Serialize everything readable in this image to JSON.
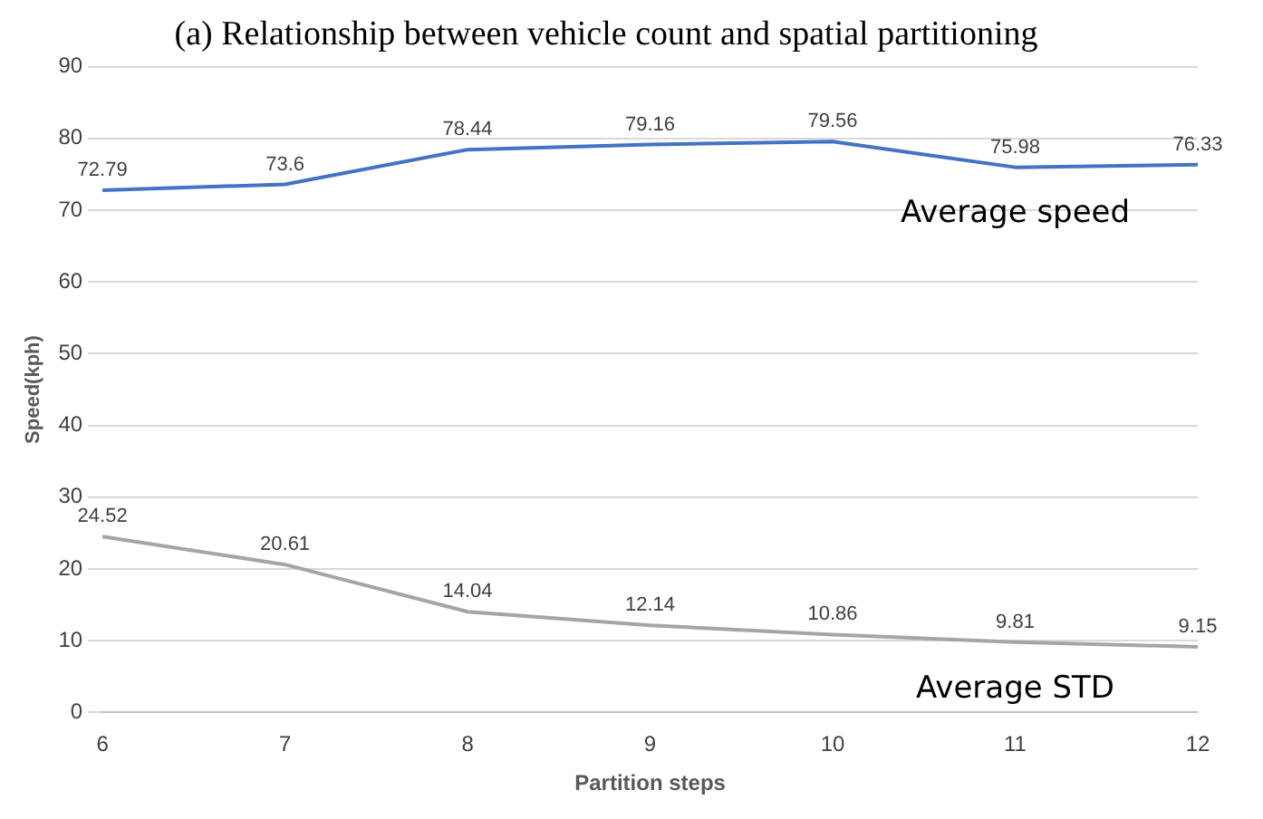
{
  "chart_data": {
    "type": "line",
    "title": "(a) Relationship between vehicle count and spatial partitioning",
    "xlabel": "Partition steps",
    "ylabel": "Speed(kph)",
    "categories": [
      "6",
      "7",
      "8",
      "9",
      "10",
      "11",
      "12"
    ],
    "series": [
      {
        "name": "Average speed",
        "color": "#4472c4",
        "values": [
          72.79,
          73.6,
          78.44,
          79.16,
          79.56,
          75.98,
          76.33
        ]
      },
      {
        "name": "Average STD",
        "color": "#a5a5a5",
        "values": [
          24.52,
          20.61,
          14.04,
          12.14,
          10.86,
          9.81,
          9.15
        ]
      }
    ],
    "ylim": [
      0,
      90
    ],
    "yticks": [
      0,
      10,
      20,
      30,
      40,
      50,
      60,
      70,
      80,
      90
    ],
    "grid": "y",
    "legend": false,
    "marker": "none",
    "line_style": "solid",
    "data_labels": true
  }
}
